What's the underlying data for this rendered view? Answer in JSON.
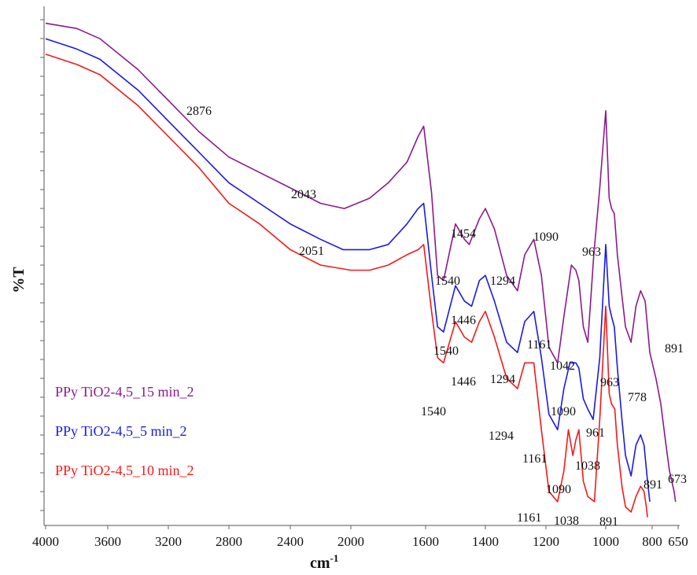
{
  "chart_data": {
    "type": "line",
    "title": "",
    "xlabel": "cm-1",
    "xlabel_base": "cm",
    "xlabel_sup": "-1",
    "ylabel": "%T",
    "xlim": [
      4000,
      650
    ],
    "x_reversed": true,
    "xticks": [
      "4000",
      "3600",
      "3200",
      "2800",
      "2400",
      "2000",
      "1600",
      "1400",
      "1200",
      "1000",
      "800",
      "650"
    ],
    "xtick_values": [
      4000,
      3600,
      3200,
      2800,
      2400,
      2000,
      1600,
      1400,
      1200,
      1000,
      800,
      650
    ],
    "ylim": [
      0,
      100
    ],
    "y_tick_labels": false,
    "legend_position": "bottom-left",
    "series": [
      {
        "name": "PPy TiO2-4,5_15 min_2",
        "color": "#8B1A8B",
        "points": [
          [
            4000,
            97
          ],
          [
            3800,
            96
          ],
          [
            3650,
            94
          ],
          [
            3400,
            88
          ],
          [
            3200,
            82
          ],
          [
            3000,
            76
          ],
          [
            2800,
            71
          ],
          [
            2600,
            68
          ],
          [
            2400,
            65
          ],
          [
            2200,
            62
          ],
          [
            2043,
            61
          ],
          [
            1900,
            63
          ],
          [
            1800,
            66
          ],
          [
            1700,
            70
          ],
          [
            1640,
            75
          ],
          [
            1610,
            77
          ],
          [
            1580,
            64
          ],
          [
            1560,
            48
          ],
          [
            1540,
            47
          ],
          [
            1500,
            58
          ],
          [
            1470,
            55
          ],
          [
            1454,
            54
          ],
          [
            1420,
            59
          ],
          [
            1400,
            61
          ],
          [
            1370,
            57
          ],
          [
            1330,
            48
          ],
          [
            1294,
            45
          ],
          [
            1270,
            52
          ],
          [
            1240,
            55
          ],
          [
            1215,
            48
          ],
          [
            1190,
            34
          ],
          [
            1161,
            31
          ],
          [
            1140,
            40
          ],
          [
            1115,
            50
          ],
          [
            1100,
            49
          ],
          [
            1090,
            47
          ],
          [
            1075,
            38
          ],
          [
            1060,
            35
          ],
          [
            1040,
            52
          ],
          [
            1020,
            65
          ],
          [
            1000,
            80
          ],
          [
            985,
            63
          ],
          [
            975,
            61
          ],
          [
            963,
            60
          ],
          [
            950,
            52
          ],
          [
            930,
            44
          ],
          [
            915,
            38
          ],
          [
            891,
            35
          ],
          [
            870,
            42
          ],
          [
            850,
            45
          ],
          [
            830,
            43
          ],
          [
            810,
            33
          ],
          [
            778,
            28
          ],
          [
            750,
            23
          ],
          [
            720,
            15
          ],
          [
            700,
            10
          ],
          [
            673,
            6
          ],
          [
            665,
            4
          ]
        ]
      },
      {
        "name": "PPy TiO2-4,5_5 min_2",
        "color": "#1A1AE6",
        "points": [
          [
            4000,
            94
          ],
          [
            3800,
            92
          ],
          [
            3650,
            90
          ],
          [
            3400,
            84
          ],
          [
            3200,
            78
          ],
          [
            3000,
            72
          ],
          [
            2800,
            66
          ],
          [
            2600,
            62
          ],
          [
            2400,
            58
          ],
          [
            2200,
            55
          ],
          [
            2051,
            53
          ],
          [
            1900,
            53
          ],
          [
            1800,
            54
          ],
          [
            1700,
            58
          ],
          [
            1640,
            61
          ],
          [
            1610,
            62
          ],
          [
            1580,
            48
          ],
          [
            1560,
            38
          ],
          [
            1540,
            37
          ],
          [
            1500,
            46
          ],
          [
            1470,
            43
          ],
          [
            1446,
            42
          ],
          [
            1420,
            47
          ],
          [
            1400,
            48
          ],
          [
            1370,
            43
          ],
          [
            1330,
            35
          ],
          [
            1294,
            33
          ],
          [
            1270,
            39
          ],
          [
            1240,
            41
          ],
          [
            1215,
            32
          ],
          [
            1190,
            21
          ],
          [
            1161,
            18
          ],
          [
            1140,
            26
          ],
          [
            1120,
            31
          ],
          [
            1100,
            31
          ],
          [
            1090,
            30
          ],
          [
            1075,
            24
          ],
          [
            1060,
            22
          ],
          [
            1042,
            20
          ],
          [
            1020,
            32
          ],
          [
            1000,
            54
          ],
          [
            985,
            42
          ],
          [
            975,
            40
          ],
          [
            963,
            38
          ],
          [
            950,
            30
          ],
          [
            930,
            20
          ],
          [
            915,
            13
          ],
          [
            891,
            9
          ],
          [
            870,
            15
          ],
          [
            850,
            17
          ],
          [
            835,
            15
          ],
          [
            820,
            8
          ],
          [
            810,
            4
          ]
        ]
      },
      {
        "name": "PPy TiO2-4,5_10 min_2",
        "color": "#F21A1A",
        "points": [
          [
            4000,
            91
          ],
          [
            3800,
            89
          ],
          [
            3650,
            87
          ],
          [
            3400,
            81
          ],
          [
            3200,
            75
          ],
          [
            3000,
            69
          ],
          [
            2800,
            62
          ],
          [
            2600,
            58
          ],
          [
            2400,
            53
          ],
          [
            2200,
            50
          ],
          [
            2000,
            49
          ],
          [
            1900,
            49
          ],
          [
            1800,
            50
          ],
          [
            1700,
            52
          ],
          [
            1640,
            53
          ],
          [
            1610,
            54
          ],
          [
            1580,
            41
          ],
          [
            1560,
            32
          ],
          [
            1540,
            31
          ],
          [
            1500,
            39
          ],
          [
            1470,
            36
          ],
          [
            1446,
            35
          ],
          [
            1420,
            39
          ],
          [
            1400,
            41
          ],
          [
            1370,
            36
          ],
          [
            1330,
            28
          ],
          [
            1294,
            26
          ],
          [
            1270,
            31
          ],
          [
            1240,
            31
          ],
          [
            1215,
            18
          ],
          [
            1190,
            6
          ],
          [
            1161,
            4
          ],
          [
            1140,
            10
          ],
          [
            1125,
            18
          ],
          [
            1110,
            13
          ],
          [
            1100,
            16
          ],
          [
            1090,
            18
          ],
          [
            1075,
            8
          ],
          [
            1060,
            5
          ],
          [
            1038,
            4
          ],
          [
            1020,
            20
          ],
          [
            1000,
            42
          ],
          [
            985,
            25
          ],
          [
            975,
            23
          ],
          [
            961,
            22
          ],
          [
            950,
            15
          ],
          [
            930,
            7
          ],
          [
            915,
            3
          ],
          [
            891,
            2
          ],
          [
            870,
            5
          ],
          [
            850,
            7
          ],
          [
            835,
            6
          ],
          [
            825,
            3
          ],
          [
            820,
            1
          ]
        ]
      }
    ],
    "annotations": [
      "2876",
      "2043",
      "2051",
      "1454",
      "1540",
      "1446",
      "1540",
      "1446",
      "1540",
      "1294",
      "1294",
      "1294",
      "1090",
      "963",
      "1161",
      "891",
      "1042",
      "963",
      "778",
      "1090",
      "961",
      "1161",
      "1038",
      "891",
      "673",
      "1090",
      "1161",
      "1038",
      "891"
    ]
  }
}
